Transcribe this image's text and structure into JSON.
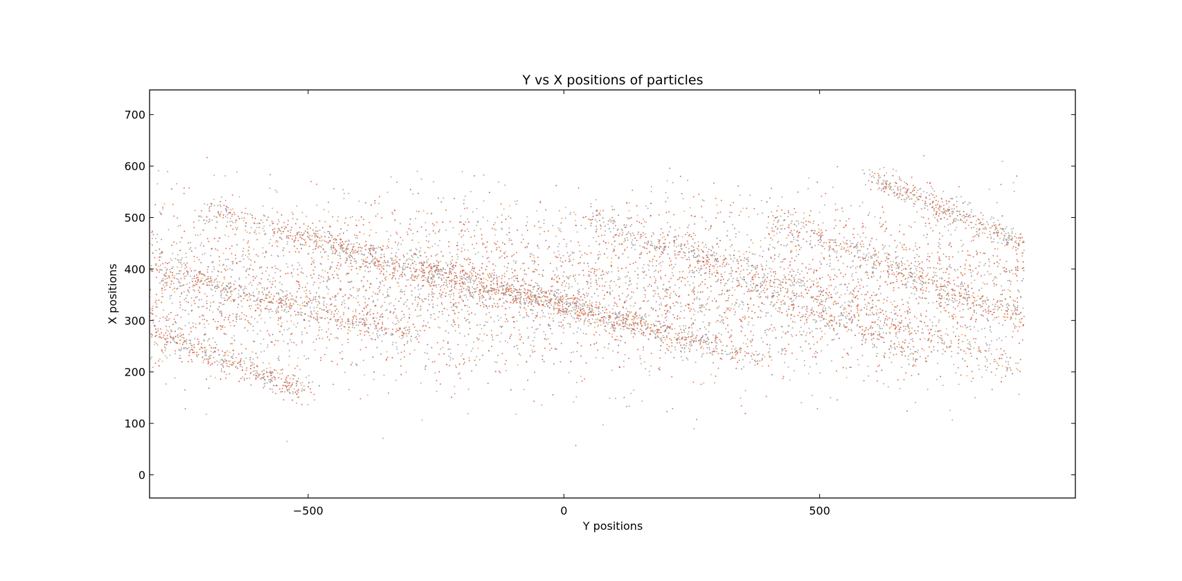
{
  "chart_data": {
    "type": "scatter",
    "title": "Y vs X positions of particles",
    "xlabel": "Y positions",
    "ylabel": "X positions",
    "xlim": [
      -810,
      1000
    ],
    "ylim": [
      -45,
      748
    ],
    "xticks": [
      -500,
      0,
      500
    ],
    "xtick_labels": [
      "−500",
      "0",
      "500"
    ],
    "yticks": [
      0,
      100,
      200,
      300,
      400,
      500,
      600,
      700
    ],
    "ytick_labels": [
      "0",
      "100",
      "200",
      "300",
      "400",
      "500",
      "600",
      "700"
    ],
    "grid": false,
    "legend": "none",
    "marker_colors": [
      "#a0a0a0",
      "#e2603e",
      "#f4a04a",
      "#c04a34",
      "#7a7a8a"
    ],
    "data_extent": {
      "x": [
        -810,
        900
      ],
      "y": [
        -30,
        716
      ]
    },
    "point_count_estimate": 9000,
    "dense_band_ridges": [
      {
        "x": [
          -810,
          -300
        ],
        "y": [
          400,
          270
        ]
      },
      {
        "x": [
          -700,
          -150
        ],
        "y": [
          520,
          340
        ]
      },
      {
        "x": [
          -520,
          100
        ],
        "y": [
          470,
          300
        ]
      },
      {
        "x": [
          -300,
          300
        ],
        "y": [
          420,
          250
        ]
      },
      {
        "x": [
          -200,
          400
        ],
        "y": [
          380,
          220
        ]
      },
      {
        "x": [
          50,
          700
        ],
        "y": [
          500,
          230
        ]
      },
      {
        "x": [
          200,
          900
        ],
        "y": [
          460,
          200
        ]
      },
      {
        "x": [
          400,
          900
        ],
        "y": [
          500,
          300
        ]
      },
      {
        "x": [
          -810,
          -500
        ],
        "y": [
          280,
          160
        ]
      },
      {
        "x": [
          600,
          900
        ],
        "y": [
          580,
          450
        ]
      }
    ]
  }
}
